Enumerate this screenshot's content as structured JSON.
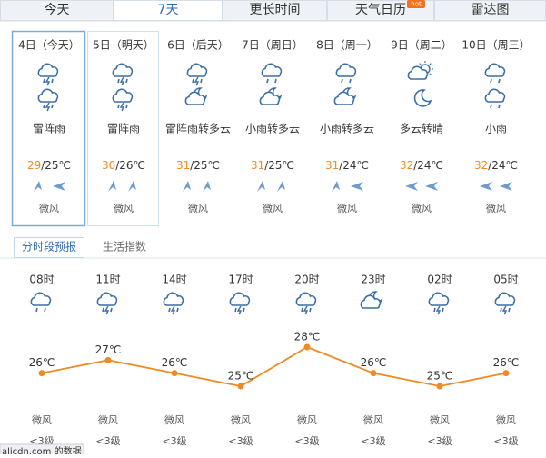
{
  "tabs": [
    "今天",
    "7天",
    "更长时间",
    "天气日历",
    "雷达图"
  ],
  "tab_badge": "hot",
  "days": [
    {
      "date": "4日（今天）",
      "weather": "雷阵雨",
      "high": "29",
      "low": "/25℃",
      "wind": "微风"
    },
    {
      "date": "5日（明天）",
      "weather": "雷阵雨",
      "high": "30",
      "low": "/26℃",
      "wind": "微风"
    },
    {
      "date": "6日（后天）",
      "weather": "雷阵雨转多云",
      "high": "31",
      "low": "/25℃",
      "wind": "微风"
    },
    {
      "date": "7日（周日）",
      "weather": "小雨转多云",
      "high": "31",
      "low": "/25℃",
      "wind": "微风"
    },
    {
      "date": "8日（周一）",
      "weather": "小雨转多云",
      "high": "31",
      "low": "/24℃",
      "wind": "微风"
    },
    {
      "date": "9日（周二）",
      "weather": "多云转晴",
      "high": "32",
      "low": "/24℃",
      "wind": "微风"
    },
    {
      "date": "10日（周三）",
      "weather": "小雨",
      "high": "32",
      "low": "/24℃",
      "wind": "微风"
    }
  ],
  "subtabs": [
    "分时段预报",
    "生活指数"
  ],
  "hourly": {
    "times": [
      "08时",
      "11时",
      "14时",
      "17时",
      "20时",
      "23时",
      "02时",
      "05时"
    ],
    "temps": [
      26,
      27,
      26,
      25,
      28,
      26,
      25,
      26
    ],
    "temp_labels": [
      "26℃",
      "27℃",
      "26℃",
      "25℃",
      "28℃",
      "26℃",
      "25℃",
      "26℃"
    ],
    "winds": [
      "微风",
      "微风",
      "微风",
      "微风",
      "微风",
      "微风",
      "微风",
      "微风"
    ],
    "levels": [
      "<3级",
      "<3级",
      "<3级",
      "<3级",
      "<3级",
      "<3级",
      "<3级",
      "<3级"
    ]
  },
  "footer": "alicdn.com 的数据"
}
